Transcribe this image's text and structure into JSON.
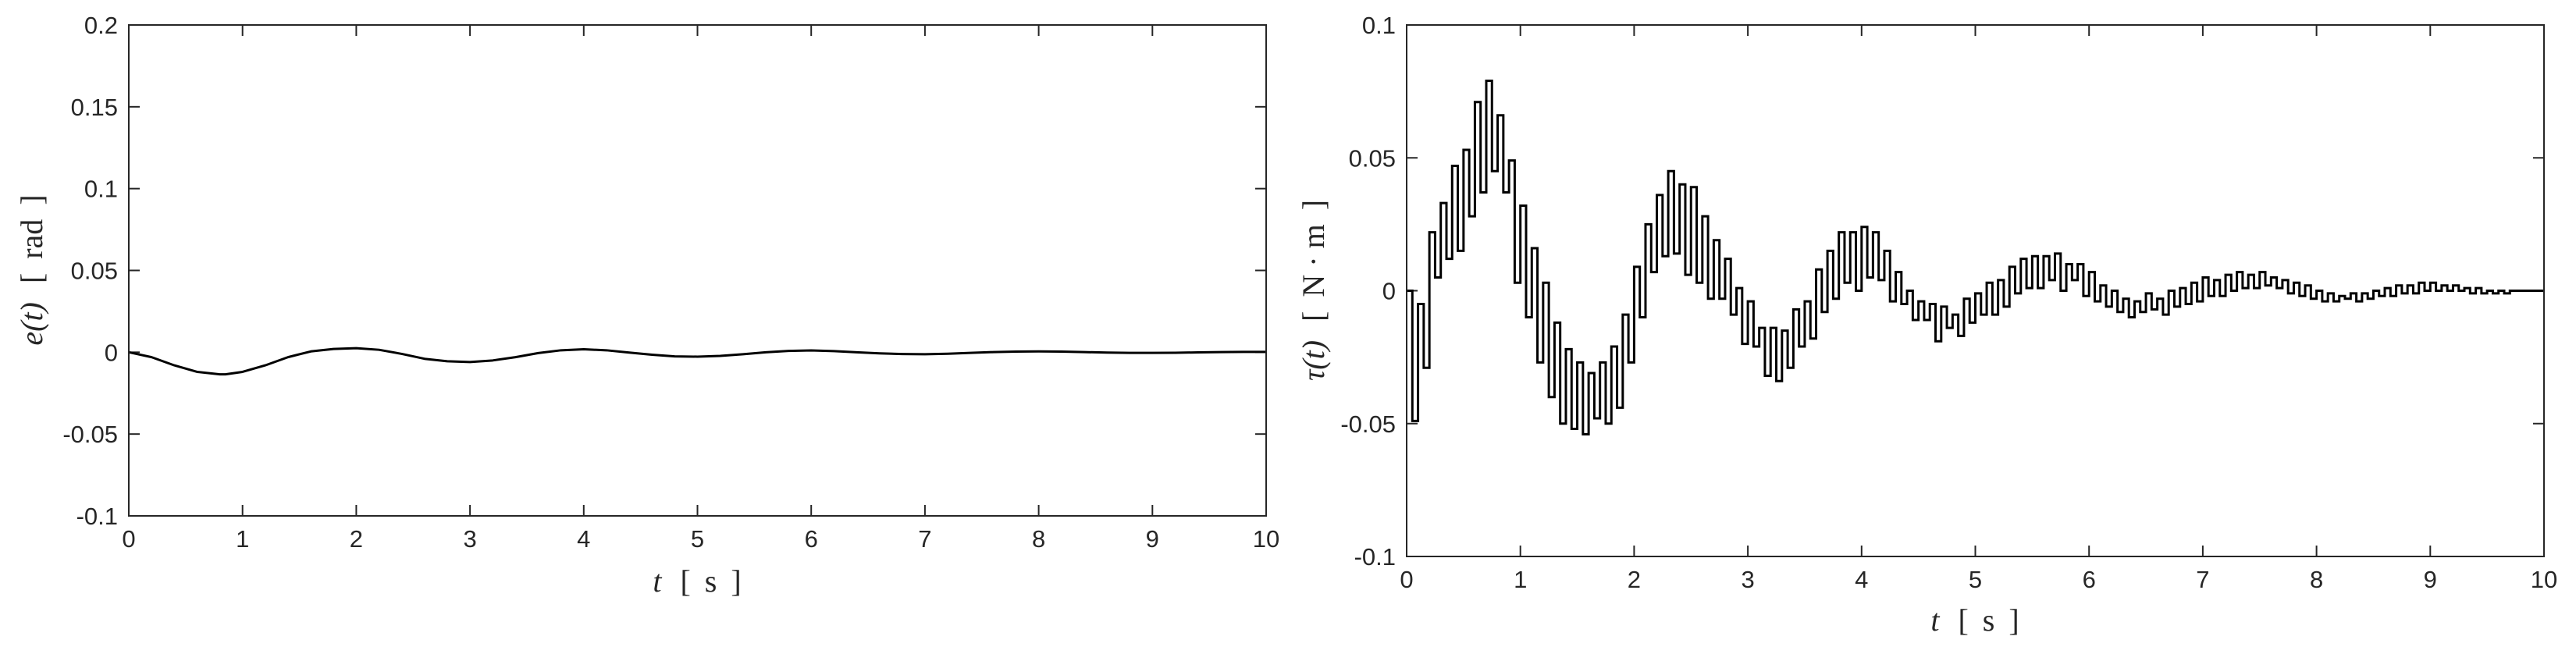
{
  "chart_data": [
    {
      "type": "line",
      "xlabel": {
        "var": "t",
        "open": "[",
        "unit": "s",
        "close": "]"
      },
      "ylabel": {
        "var": "e(t)",
        "open": "[",
        "unit": "rad",
        "close": "]"
      },
      "xlim": [
        0,
        10
      ],
      "ylim": [
        -0.1,
        0.2
      ],
      "xticks": [
        "0",
        "1",
        "2",
        "3",
        "4",
        "5",
        "6",
        "7",
        "8",
        "9",
        "10"
      ],
      "yticks": [
        "-0.1",
        "-0.05",
        "0",
        "0.05",
        "0.1",
        "0.15",
        "0.2"
      ],
      "grid": false,
      "series": [
        {
          "x": [
            0,
            0.2,
            0.4,
            0.6,
            0.8,
            0.85,
            1.0,
            1.2,
            1.4,
            1.6,
            1.8,
            2.0,
            2.2,
            2.4,
            2.6,
            2.8,
            3.0,
            3.2,
            3.4,
            3.6,
            3.8,
            4.0,
            4.2,
            4.4,
            4.6,
            4.8,
            5.0,
            5.2,
            5.4,
            5.6,
            5.8,
            6.0,
            6.2,
            6.4,
            6.6,
            6.8,
            7.0,
            7.2,
            7.4,
            7.6,
            7.8,
            8.0,
            8.2,
            8.4,
            8.6,
            8.8,
            9.0,
            9.2,
            9.4,
            9.6,
            9.8,
            10.0
          ],
          "y": [
            0,
            -0.003,
            -0.008,
            -0.012,
            -0.0135,
            -0.0135,
            -0.012,
            -0.008,
            -0.003,
            0.0005,
            0.002,
            0.0025,
            0.0015,
            -0.001,
            -0.004,
            -0.0055,
            -0.006,
            -0.005,
            -0.003,
            -0.0005,
            0.0012,
            0.0018,
            0.0012,
            -0.0002,
            -0.0015,
            -0.0025,
            -0.0027,
            -0.0022,
            -0.0012,
            0.0,
            0.0008,
            0.0011,
            0.0007,
            0.0,
            -0.0007,
            -0.0011,
            -0.0012,
            -0.0009,
            -0.0004,
            0.0001,
            0.0004,
            0.0005,
            0.0004,
            0.0001,
            -0.0002,
            -0.0004,
            -0.0004,
            -0.0003,
            -0.0001,
            0.0001,
            0.0002,
            0.0002
          ]
        }
      ]
    },
    {
      "type": "line",
      "xlabel": {
        "var": "t",
        "open": "[",
        "unit": "s",
        "close": "]"
      },
      "ylabel": {
        "var": "τ(t)",
        "open": "[",
        "unit": "N · m",
        "close": "]"
      },
      "xlim": [
        0,
        10
      ],
      "ylim": [
        -0.1,
        0.1
      ],
      "xticks": [
        "0",
        "1",
        "2",
        "3",
        "4",
        "5",
        "6",
        "7",
        "8",
        "9",
        "10"
      ],
      "yticks": [
        "-0.1",
        "-0.05",
        "0",
        "0.05",
        "0.1"
      ],
      "grid": false,
      "step": true,
      "series": [
        {
          "x": [
            0,
            0.05,
            0.1,
            0.15,
            0.2,
            0.25,
            0.3,
            0.35,
            0.4,
            0.45,
            0.5,
            0.55,
            0.6,
            0.65,
            0.7,
            0.75,
            0.8,
            0.85,
            0.9,
            0.95,
            1.0,
            1.05,
            1.1,
            1.15,
            1.2,
            1.25,
            1.3,
            1.35,
            1.4,
            1.45,
            1.5,
            1.55,
            1.6,
            1.65,
            1.7,
            1.75,
            1.8,
            1.85,
            1.9,
            1.95,
            2.0,
            2.05,
            2.1,
            2.15,
            2.2,
            2.25,
            2.3,
            2.35,
            2.4,
            2.45,
            2.5,
            2.55,
            2.6,
            2.65,
            2.7,
            2.75,
            2.8,
            2.85,
            2.9,
            2.95,
            3.0,
            3.05,
            3.1,
            3.15,
            3.2,
            3.25,
            3.3,
            3.35,
            3.4,
            3.45,
            3.5,
            3.55,
            3.6,
            3.65,
            3.7,
            3.75,
            3.8,
            3.85,
            3.9,
            3.95,
            4.0,
            4.05,
            4.1,
            4.15,
            4.2,
            4.25,
            4.3,
            4.35,
            4.4,
            4.45,
            4.5,
            4.55,
            4.6,
            4.65,
            4.7,
            4.75,
            4.8,
            4.85,
            4.9,
            4.95,
            5.0,
            5.05,
            5.1,
            5.15,
            5.2,
            5.25,
            5.3,
            5.35,
            5.4,
            5.45,
            5.5,
            5.55,
            5.6,
            5.65,
            5.7,
            5.75,
            5.8,
            5.85,
            5.9,
            5.95,
            6.0,
            6.05,
            6.1,
            6.15,
            6.2,
            6.25,
            6.3,
            6.35,
            6.4,
            6.45,
            6.5,
            6.55,
            6.6,
            6.65,
            6.7,
            6.75,
            6.8,
            6.85,
            6.9,
            6.95,
            7.0,
            7.05,
            7.1,
            7.15,
            7.2,
            7.25,
            7.3,
            7.35,
            7.4,
            7.45,
            7.5,
            7.55,
            7.6,
            7.65,
            7.7,
            7.75,
            7.8,
            7.85,
            7.9,
            7.95,
            8.0,
            8.05,
            8.1,
            8.15,
            8.2,
            8.25,
            8.3,
            8.35,
            8.4,
            8.45,
            8.5,
            8.55,
            8.6,
            8.65,
            8.7,
            8.75,
            8.8,
            8.85,
            8.9,
            8.95,
            9.0,
            9.05,
            9.1,
            9.15,
            9.2,
            9.25,
            9.3,
            9.35,
            9.4,
            9.45,
            9.5,
            9.55,
            9.6,
            9.65,
            9.7,
            9.75,
            9.8,
            9.85,
            9.9,
            9.95
          ],
          "y": [
            0,
            -0.049,
            -0.005,
            -0.029,
            0.022,
            0.005,
            0.033,
            0.012,
            0.047,
            0.015,
            0.053,
            0.028,
            0.071,
            0.037,
            0.079,
            0.045,
            0.066,
            0.037,
            0.049,
            0.003,
            0.032,
            -0.01,
            0.016,
            -0.027,
            0.003,
            -0.04,
            -0.012,
            -0.05,
            -0.022,
            -0.052,
            -0.027,
            -0.054,
            -0.031,
            -0.048,
            -0.027,
            -0.05,
            -0.021,
            -0.044,
            -0.009,
            -0.027,
            0.009,
            -0.01,
            0.025,
            0.007,
            0.036,
            0.013,
            0.045,
            0.014,
            0.04,
            0.006,
            0.039,
            0.003,
            0.028,
            -0.003,
            0.019,
            -0.003,
            0.012,
            -0.009,
            0.001,
            -0.02,
            -0.004,
            -0.021,
            -0.014,
            -0.032,
            -0.014,
            -0.034,
            -0.015,
            -0.029,
            -0.007,
            -0.021,
            -0.004,
            -0.018,
            0.008,
            -0.008,
            0.015,
            -0.003,
            0.022,
            0.003,
            0.022,
            0.0,
            0.024,
            0.005,
            0.022,
            0.004,
            0.015,
            -0.004,
            0.007,
            -0.005,
            0.0,
            -0.011,
            -0.004,
            -0.011,
            -0.005,
            -0.019,
            -0.006,
            -0.014,
            -0.009,
            -0.017,
            -0.003,
            -0.012,
            -0.001,
            -0.009,
            0.003,
            -0.009,
            0.004,
            -0.006,
            0.009,
            -0.001,
            0.012,
            0.001,
            0.013,
            0.001,
            0.013,
            0.004,
            0.014,
            0.0,
            0.01,
            0.004,
            0.01,
            -0.002,
            0.007,
            -0.004,
            0.002,
            -0.006,
            0.0,
            -0.008,
            -0.003,
            -0.01,
            -0.004,
            -0.008,
            -0.001,
            -0.007,
            -0.003,
            -0.009,
            0.0,
            -0.006,
            0.001,
            -0.005,
            0.003,
            -0.004,
            0.005,
            -0.002,
            0.004,
            -0.002,
            0.006,
            0.0,
            0.007,
            0.001,
            0.006,
            0.001,
            0.007,
            0.002,
            0.005,
            0.001,
            0.004,
            -0.001,
            0.003,
            -0.002,
            0.002,
            -0.003,
            0.0,
            -0.004,
            -0.001,
            -0.004,
            -0.002,
            -0.003,
            -0.001,
            -0.004,
            -0.001,
            -0.003,
            0.0,
            -0.002,
            0.001,
            -0.002,
            0.002,
            -0.001,
            0.002,
            -0.001,
            0.003,
            0.0,
            0.003,
            0.0,
            0.002,
            0.0,
            0.002,
            0.0,
            0.001,
            -0.001,
            0.001,
            -0.001,
            0.0,
            -0.001,
            0.0,
            -0.001,
            0.0,
            0.0,
            0.0,
            0.0,
            0.0,
            0.0
          ]
        }
      ]
    }
  ]
}
